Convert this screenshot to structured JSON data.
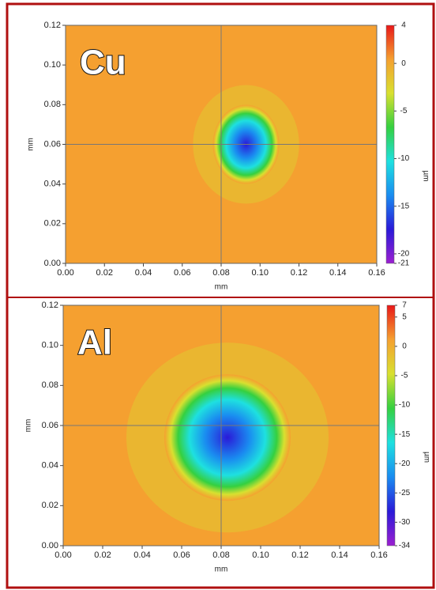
{
  "chart_data": [
    {
      "type": "heatmap",
      "annotation": "Cu",
      "xlabel": "mm",
      "ylabel": "mm",
      "xlim": [
        0,
        0.16
      ],
      "xticks": [
        {
          "value": 0,
          "label": "0.00"
        },
        0.02,
        0.04,
        0.06,
        0.08,
        {
          "value": 0.1,
          "label": "0.10"
        },
        0.12,
        0.14,
        0.16
      ],
      "ylim": [
        0,
        0.12
      ],
      "yticks": [
        {
          "value": 0,
          "label": "0.00"
        },
        0.02,
        0.04,
        0.06,
        0.08,
        {
          "value": 0.1,
          "label": "0.10"
        },
        0.12
      ],
      "zlabel": "µm",
      "zlim": [
        -21,
        4
      ],
      "zticks": [
        4,
        0,
        -5,
        -10,
        -15,
        -20,
        -21
      ],
      "colormap": [
        "#9b1fd0",
        "#2a1ad8",
        "#1a8cf0",
        "#1ee0e0",
        "#35d040",
        "#d8e030",
        "#f5a030",
        "#e81818"
      ]
    },
    {
      "type": "heatmap",
      "annotation": "Al",
      "xlabel": "mm",
      "ylabel": "mm",
      "xlim": [
        0,
        0.16
      ],
      "xticks": [
        {
          "value": 0,
          "label": "0.00"
        },
        0.02,
        0.04,
        0.06,
        0.08,
        {
          "value": 0.1,
          "label": "0.10"
        },
        0.12,
        0.14,
        0.16
      ],
      "ylim": [
        0,
        0.12
      ],
      "yticks": [
        {
          "value": 0,
          "label": "0.00"
        },
        0.02,
        0.04,
        0.06,
        0.08,
        {
          "value": 0.1,
          "label": "0.10"
        },
        0.12
      ],
      "zlabel": "µm",
      "zlim": [
        -34,
        7
      ],
      "zticks": [
        7,
        5,
        0,
        -5,
        -10,
        -15,
        -20,
        -25,
        -30,
        -34
      ],
      "colormap": [
        "#9b1fd0",
        "#2a1ad8",
        "#1a8cf0",
        "#1ee0e0",
        "#35d040",
        "#d8e030",
        "#f5a030",
        "#e81818"
      ]
    }
  ]
}
